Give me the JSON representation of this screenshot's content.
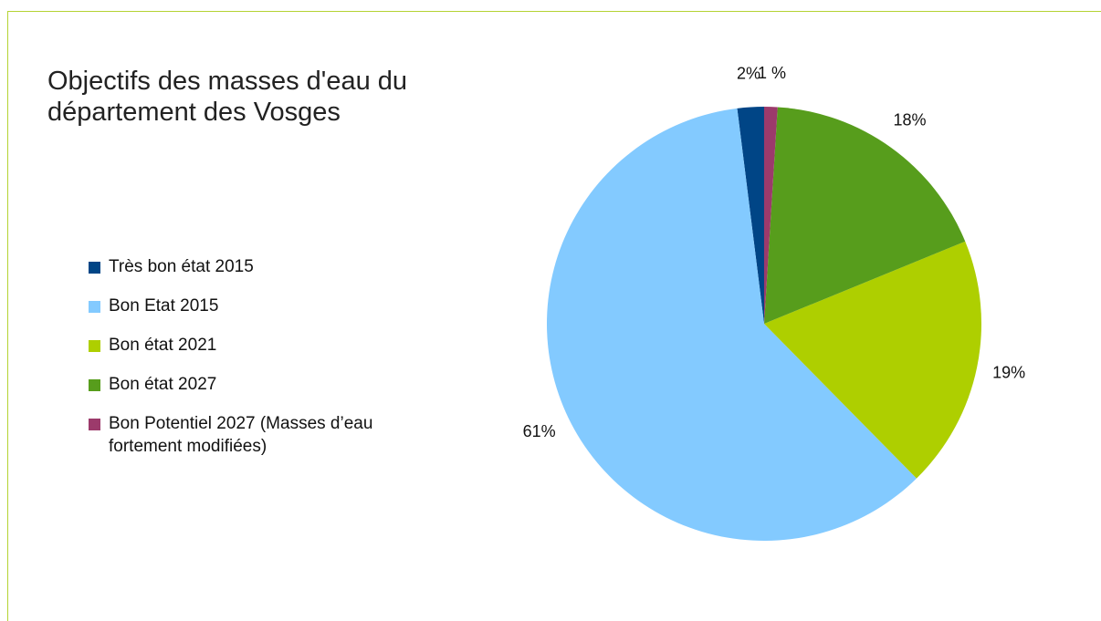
{
  "chart_data": {
    "type": "pie",
    "title": "Objectifs des masses d'eau du département des Vosges",
    "categories": [
      "Très bon état 2015",
      "Bon Etat 2015",
      "Bon état 2021",
      "Bon état 2027",
      "Bon Potentiel 2027 (Masses d’eau fortement modifiées)"
    ],
    "values": [
      2,
      61,
      19,
      18,
      1
    ],
    "value_labels": [
      "2%",
      "61%",
      "19%",
      "18%",
      "1 %"
    ],
    "colors": [
      "#004586",
      "#83caff",
      "#aecf00",
      "#579d1c",
      "#9c3a6b"
    ],
    "legend": "left"
  }
}
